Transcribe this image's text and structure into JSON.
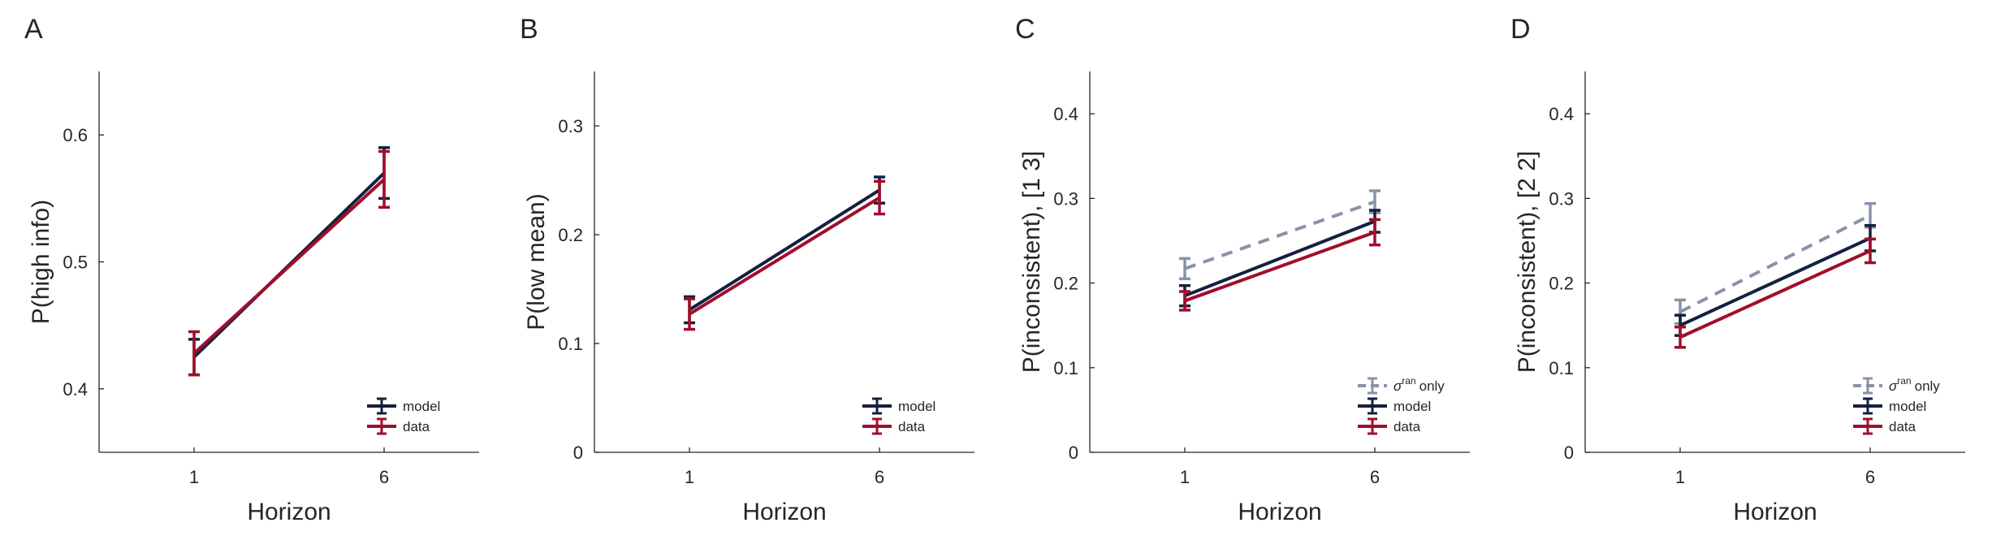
{
  "colors": {
    "model": "#13213f",
    "data": "#a30d2a",
    "sigma_only": "#8893a8",
    "axis": "#262626"
  },
  "chart_data": [
    {
      "type": "line",
      "panel_label": "A",
      "xlabel": "Horizon",
      "ylabel": "P(high info)",
      "x": [
        1,
        6
      ],
      "xticks": [
        "1",
        "6"
      ],
      "xlim": [
        -1.5,
        8.5
      ],
      "ylim": [
        0.35,
        0.65
      ],
      "yticks": [
        0.4,
        0.5,
        0.6
      ],
      "ytick_labels": [
        "0.4",
        "0.5",
        "0.6"
      ],
      "grid": false,
      "legend_position": "bottom-right",
      "series": [
        {
          "name": "model",
          "values": [
            0.425,
            0.57
          ],
          "errors": [
            0.014,
            0.02
          ],
          "color": "model",
          "dashed": false
        },
        {
          "name": "data",
          "values": [
            0.428,
            0.565
          ],
          "errors": [
            0.017,
            0.022
          ],
          "color": "data",
          "dashed": false
        }
      ]
    },
    {
      "type": "line",
      "panel_label": "B",
      "xlabel": "Horizon",
      "ylabel": "P(low mean)",
      "x": [
        1,
        6
      ],
      "xticks": [
        "1",
        "6"
      ],
      "xlim": [
        -1.5,
        8.5
      ],
      "ylim": [
        0,
        0.35
      ],
      "yticks": [
        0,
        0.1,
        0.2,
        0.3
      ],
      "ytick_labels": [
        "0",
        "0.1",
        "0.2",
        "0.3"
      ],
      "grid": false,
      "legend_position": "bottom-right",
      "series": [
        {
          "name": "model",
          "values": [
            0.131,
            0.241
          ],
          "errors": [
            0.012,
            0.012
          ],
          "color": "model",
          "dashed": false
        },
        {
          "name": "data",
          "values": [
            0.127,
            0.234
          ],
          "errors": [
            0.014,
            0.015
          ],
          "color": "data",
          "dashed": false
        }
      ]
    },
    {
      "type": "line",
      "panel_label": "C",
      "xlabel": "Horizon",
      "ylabel": "P(inconsistent), [1 3]",
      "x": [
        1,
        6
      ],
      "xticks": [
        "1",
        "6"
      ],
      "xlim": [
        -1.5,
        8.5
      ],
      "ylim": [
        0,
        0.45
      ],
      "yticks": [
        0,
        0.1,
        0.2,
        0.3,
        0.4
      ],
      "ytick_labels": [
        "0",
        "0.1",
        "0.2",
        "0.3",
        "0.4"
      ],
      "grid": false,
      "legend_position": "bottom-right",
      "series": [
        {
          "name": "only",
          "name_prefix": "σ",
          "name_sup": "ran",
          "values": [
            0.217,
            0.296
          ],
          "errors": [
            0.012,
            0.013
          ],
          "color": "sigma_only",
          "dashed": true
        },
        {
          "name": "model",
          "values": [
            0.185,
            0.273
          ],
          "errors": [
            0.012,
            0.013
          ],
          "color": "model",
          "dashed": false
        },
        {
          "name": "data",
          "values": [
            0.179,
            0.26
          ],
          "errors": [
            0.011,
            0.015
          ],
          "color": "data",
          "dashed": false
        }
      ]
    },
    {
      "type": "line",
      "panel_label": "D",
      "xlabel": "Horizon",
      "ylabel": "P(inconsistent), [2 2]",
      "x": [
        1,
        6
      ],
      "xticks": [
        "1",
        "6"
      ],
      "xlim": [
        -1.5,
        8.5
      ],
      "ylim": [
        0,
        0.45
      ],
      "yticks": [
        0,
        0.1,
        0.2,
        0.3,
        0.4
      ],
      "ytick_labels": [
        "0",
        "0.1",
        "0.2",
        "0.3",
        "0.4"
      ],
      "grid": false,
      "legend_position": "bottom-right",
      "series": [
        {
          "name": "only",
          "name_prefix": "σ",
          "name_sup": "ran",
          "values": [
            0.166,
            0.28
          ],
          "errors": [
            0.014,
            0.014
          ],
          "color": "sigma_only",
          "dashed": true
        },
        {
          "name": "model",
          "values": [
            0.15,
            0.253
          ],
          "errors": [
            0.012,
            0.015
          ],
          "color": "model",
          "dashed": false
        },
        {
          "name": "data",
          "values": [
            0.136,
            0.238
          ],
          "errors": [
            0.012,
            0.014
          ],
          "color": "data",
          "dashed": false
        }
      ]
    }
  ]
}
